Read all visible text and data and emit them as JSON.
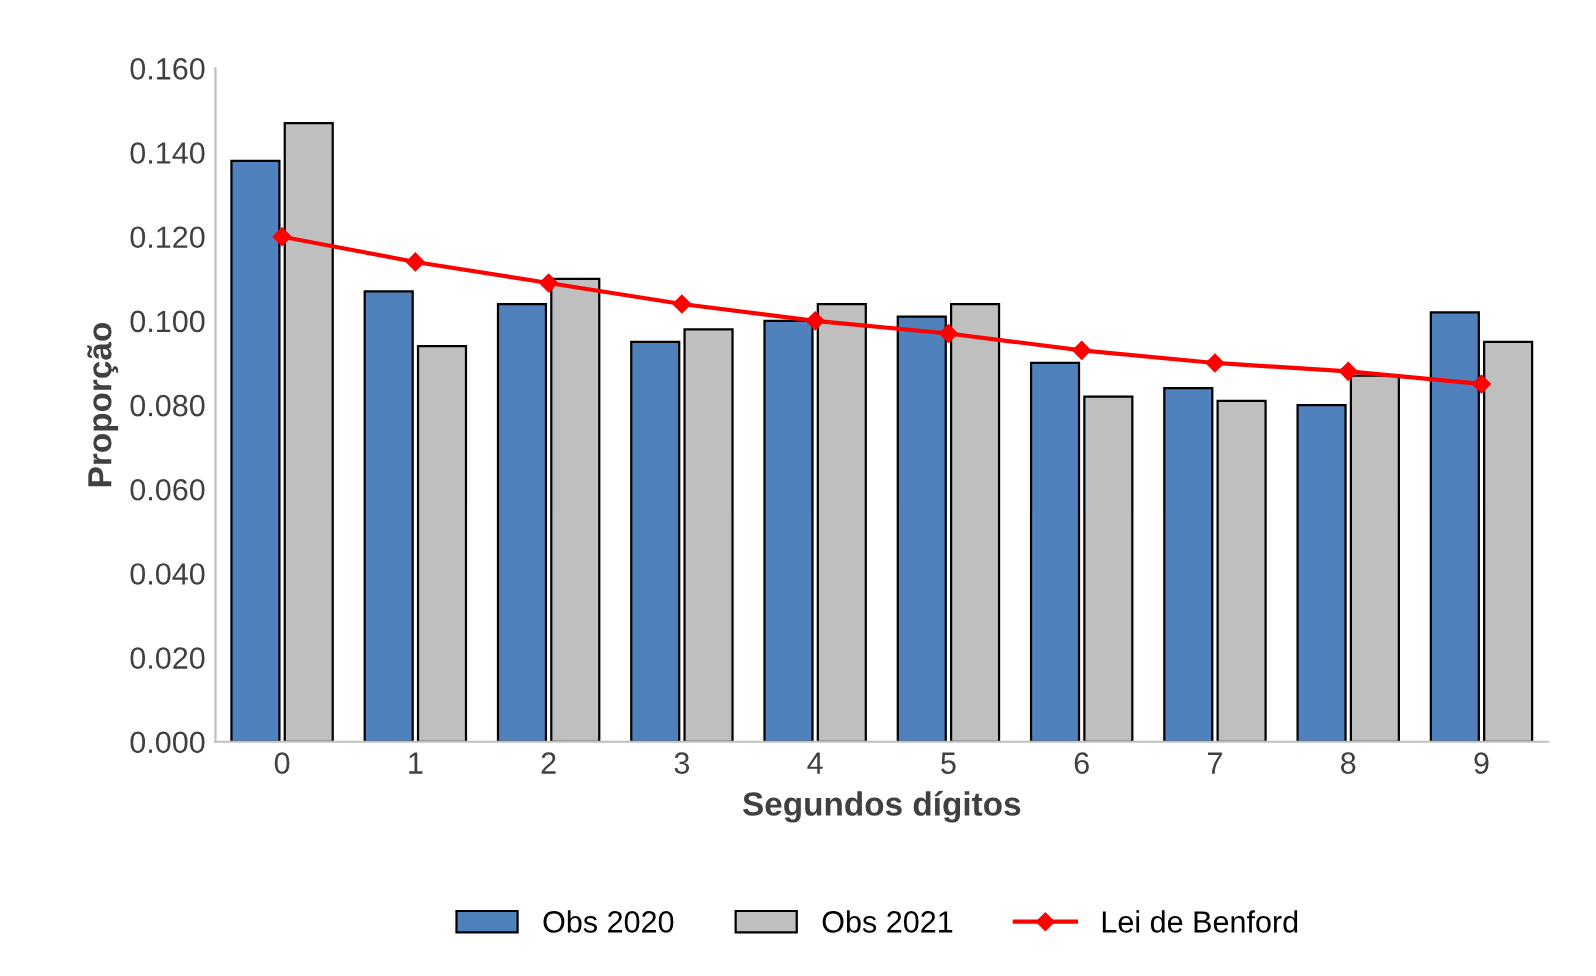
{
  "chart_data": {
    "type": "bar",
    "xlabel": "Segundos dígitos",
    "ylabel": "Proporção",
    "categories": [
      "0",
      "1",
      "2",
      "3",
      "4",
      "5",
      "6",
      "7",
      "8",
      "9"
    ],
    "series": [
      {
        "name": "Obs 2020",
        "color": "#4f81bd",
        "values": [
          0.138,
          0.107,
          0.104,
          0.095,
          0.1,
          0.101,
          0.09,
          0.084,
          0.08,
          0.102
        ]
      },
      {
        "name": "Obs 2021",
        "color": "#bfbfbf",
        "values": [
          0.147,
          0.094,
          0.11,
          0.098,
          0.104,
          0.104,
          0.082,
          0.081,
          0.087,
          0.095
        ]
      },
      {
        "name": "Lei de Benford",
        "type": "line",
        "color": "#ff0000",
        "marker": "diamond",
        "values": [
          0.12,
          0.114,
          0.109,
          0.104,
          0.1,
          0.097,
          0.093,
          0.09,
          0.088,
          0.085
        ]
      }
    ],
    "ylim": [
      0,
      0.16
    ],
    "yticks": [
      {
        "value": 0,
        "label": "0.000"
      },
      {
        "value": 0.02,
        "label": "0.020"
      },
      {
        "value": 0.04,
        "label": "0.040"
      },
      {
        "value": 0.06,
        "label": "0.060"
      },
      {
        "value": 0.08,
        "label": "0.080"
      },
      {
        "value": 0.1,
        "label": "0.100"
      },
      {
        "value": 0.12,
        "label": "0.120"
      },
      {
        "value": 0.14,
        "label": "0.140"
      },
      {
        "value": 0.16,
        "label": "0.160"
      }
    ],
    "legend": "bottom"
  }
}
